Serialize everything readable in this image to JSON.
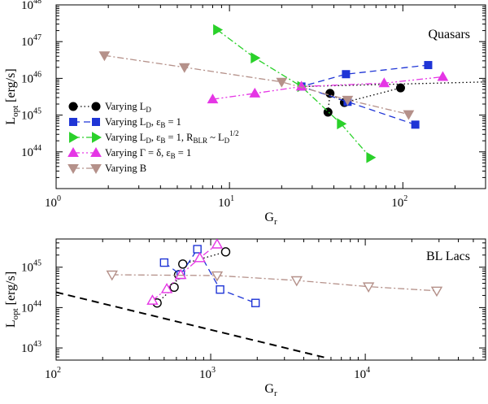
{
  "chart_data": [
    {
      "type": "line",
      "id": "top",
      "title": "Quasars",
      "xlabel": "G_r",
      "xlabel_main": "G",
      "xlabel_sub": "r",
      "ylabel": "L_opt [erg/s]",
      "ylabel_main": "L",
      "ylabel_sub": "opt",
      "ylabel_unit": " [erg/s]",
      "xscale": "log",
      "yscale": "log",
      "xlim": [
        1,
        300
      ],
      "ylim": [
        1e+43,
        1e+48
      ],
      "xticks": [
        {
          "v": 1,
          "m": "10",
          "e": "0"
        },
        {
          "v": 10,
          "m": "10",
          "e": "1"
        },
        {
          "v": 100,
          "m": "10",
          "e": "2"
        }
      ],
      "yticks": [
        {
          "v": 1e+44,
          "m": "10",
          "e": "44"
        },
        {
          "v": 1e+45,
          "m": "10",
          "e": "45"
        },
        {
          "v": 1e+46,
          "m": "10",
          "e": "46"
        },
        {
          "v": 1e+47,
          "m": "10",
          "e": "47"
        },
        {
          "v": 1e+48,
          "m": "10",
          "e": "48"
        }
      ],
      "legend_position": "left",
      "series": [
        {
          "name": "Varying L_D",
          "label_parts": [
            [
              "Varying L",
              "base"
            ],
            [
              "D",
              "sub"
            ]
          ],
          "color": "#000000",
          "marker": "circle",
          "filled": true,
          "dash": "1.5,3",
          "points": [
            [
              37,
              1.2e+45
            ],
            [
              38,
              3.9e+45
            ],
            [
              46,
              2.2e+45
            ],
            [
              97,
              5.5e+45
            ]
          ],
          "extension": [
            [
              26,
              6e+45
            ],
            [
              300,
              8e+45
            ]
          ]
        },
        {
          "name": "Varying L_D, ε_B = 1",
          "label_parts": [
            [
              "Varying L",
              "base"
            ],
            [
              "D",
              "sub"
            ],
            [
              ", ε",
              "base"
            ],
            [
              "B",
              "sub"
            ],
            [
              " = 1",
              "base"
            ]
          ],
          "color": "#1f35d6",
          "marker": "square",
          "filled": true,
          "dash": "8,5",
          "points": [
            [
              118,
              5.5e+44
            ],
            [
              48,
              2.3e+45
            ],
            [
              26,
              6e+45
            ],
            [
              47,
              1.3e+46
            ],
            [
              140,
              2.3e+46
            ]
          ]
        },
        {
          "name": "Varying L_D, ε_B = 1, R_BLR ~ L_D^1/2",
          "label_parts": [
            [
              "Varying L",
              "base"
            ],
            [
              "D",
              "sub"
            ],
            [
              ", ε",
              "base"
            ],
            [
              "B",
              "sub"
            ],
            [
              " = 1, R",
              "base"
            ],
            [
              "BLR",
              "sub"
            ],
            [
              " ~ L",
              "base"
            ],
            [
              "D",
              "sub"
            ],
            [
              "1/2",
              "sup"
            ]
          ],
          "color": "#2ad12a",
          "marker": "triangle-right",
          "filled": true,
          "dash": "8,3,2,3",
          "points": [
            [
              8.5,
              2.1e+47
            ],
            [
              14,
              3.6e+46
            ],
            [
              26,
              6e+45
            ],
            [
              44,
              5.8e+44
            ],
            [
              65,
              7e+43
            ]
          ]
        },
        {
          "name": "Varying Γ = δ, ε_B = 1",
          "label_parts": [
            [
              "Varying Γ = δ, ε",
              "base"
            ],
            [
              "B",
              "sub"
            ],
            [
              " = 1",
              "base"
            ]
          ],
          "color": "#e536e5",
          "marker": "triangle-up",
          "filled": true,
          "dash": "8,3,2,3,2,3",
          "points": [
            [
              8,
              2.7e+45
            ],
            [
              14,
              3.9e+45
            ],
            [
              26,
              6e+45
            ],
            [
              78,
              7.4e+45
            ],
            [
              170,
              1.1e+46
            ]
          ]
        },
        {
          "name": "Varying B",
          "label_parts": [
            [
              "Varying B",
              "base"
            ]
          ],
          "color": "#b5918a",
          "marker": "triangle-down",
          "filled": true,
          "dash": "8,3,2,3",
          "points": [
            [
              1.9,
              4.2e+46
            ],
            [
              5.5,
              2e+46
            ],
            [
              20,
              8e+45
            ],
            [
              48,
              2.6e+45
            ],
            [
              108,
              1.05e+45
            ]
          ]
        }
      ]
    },
    {
      "type": "line",
      "id": "bottom",
      "title": "BL Lacs",
      "xlabel": "G_r",
      "xlabel_main": "G",
      "xlabel_sub": "r",
      "ylabel": "L_opt [erg/s]",
      "ylabel_main": "L",
      "ylabel_sub": "opt",
      "ylabel_unit": " [erg/s]",
      "xscale": "log",
      "yscale": "log",
      "xlim": [
        100,
        60000
      ],
      "ylim": [
        5e+42,
        5e+45
      ],
      "xticks": [
        {
          "v": 100,
          "m": "10",
          "e": "2"
        },
        {
          "v": 1000,
          "m": "10",
          "e": "3"
        },
        {
          "v": 10000,
          "m": "10",
          "e": "4"
        }
      ],
      "yticks": [
        {
          "v": 1e+43,
          "m": "10",
          "e": "43"
        },
        {
          "v": 1e+44,
          "m": "10",
          "e": "44"
        },
        {
          "v": 1e+45,
          "m": "10",
          "e": "45"
        }
      ],
      "reference_line": {
        "name": "dashed limit",
        "color": "#000000",
        "dash": "9,6",
        "points": [
          [
            100,
            2.4e+44
          ],
          [
            5800,
            5.5e+42
          ]
        ]
      },
      "series": [
        {
          "name": "Varying L_D",
          "color": "#000000",
          "marker": "circle",
          "filled": false,
          "dash": "1.5,3",
          "points": [
            [
              450,
              1.3e+44
            ],
            [
              580,
              3.2e+44
            ],
            [
              620,
              6.5e+44
            ],
            [
              660,
              1.2e+45
            ],
            [
              1250,
              2.4e+45
            ]
          ]
        },
        {
          "name": "Varying L_D, ε_B = 1",
          "color": "#1f35d6",
          "marker": "square",
          "filled": false,
          "dash": "8,5",
          "points": [
            [
              500,
              1.3e+45
            ],
            [
              640,
              6.5e+44
            ],
            [
              820,
              2.8e+45
            ],
            [
              1150,
              2.8e+44
            ],
            [
              1950,
              1.3e+44
            ]
          ]
        },
        {
          "name": "Varying Γ = δ, ε_B = 1",
          "color": "#e536e5",
          "marker": "triangle-up",
          "filled": false,
          "dash": "8,3,2,3,2,3",
          "points": [
            [
              420,
              1.5e+44
            ],
            [
              520,
              2.9e+44
            ],
            [
              640,
              6.5e+44
            ],
            [
              850,
              1.7e+45
            ],
            [
              1100,
              3.7e+45
            ]
          ]
        },
        {
          "name": "Varying B",
          "color": "#b5918a",
          "marker": "triangle-down",
          "filled": false,
          "dash": "8,3,2,3",
          "points": [
            [
              230,
              6.5e+44
            ],
            [
              1100,
              6.2e+44
            ],
            [
              3600,
              4.7e+44
            ],
            [
              10500,
              3.3e+44
            ],
            [
              29000,
              2.6e+44
            ]
          ]
        }
      ]
    }
  ]
}
